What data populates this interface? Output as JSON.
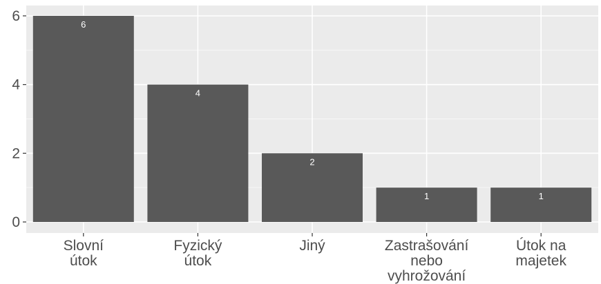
{
  "chart_data": {
    "type": "bar",
    "title": "",
    "xlabel": "",
    "ylabel": "",
    "categories": [
      [
        "Slovní",
        "útok"
      ],
      [
        "Fyzický",
        "útok"
      ],
      [
        "Jiný"
      ],
      [
        "Zastrašování",
        "nebo",
        "vyhrožování"
      ],
      [
        "Útok na",
        "majetek"
      ]
    ],
    "values": [
      6,
      4,
      2,
      1,
      1
    ],
    "data_labels": [
      "6",
      "4",
      "2",
      "1",
      "1"
    ],
    "ylim": [
      0,
      6
    ],
    "yticks": [
      0,
      2,
      4,
      6
    ],
    "ytick_labels": [
      "0",
      "2",
      "4",
      "6"
    ],
    "grid": true,
    "legend": "none",
    "colors": {
      "bar": "#595959",
      "panel": "#ebebeb",
      "grid_major": "#ffffff",
      "grid_minor": "#f7f7f7",
      "tick_text": "#4d4d4d",
      "data_label": "#ffffff"
    }
  }
}
